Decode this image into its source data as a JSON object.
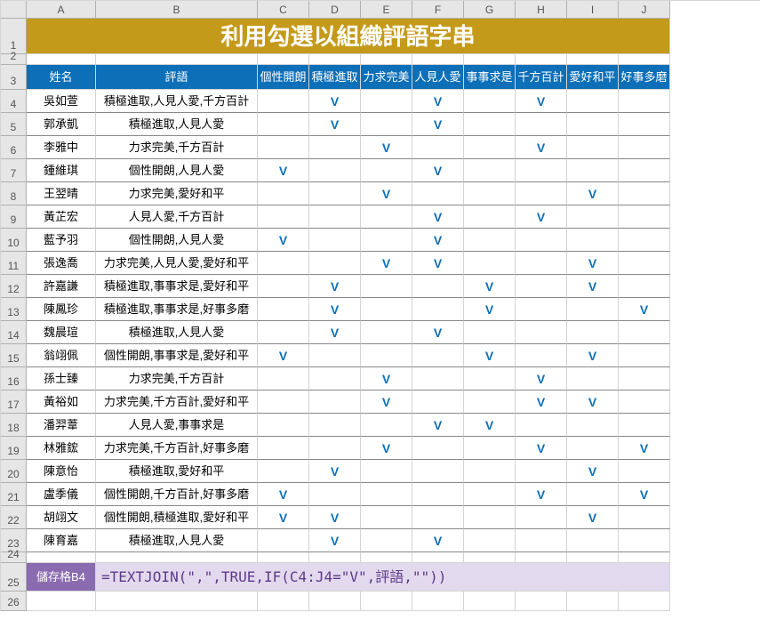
{
  "banner": "利用勾選以組織評語字串",
  "col_headers": [
    "A",
    "B",
    "C",
    "D",
    "E",
    "F",
    "G",
    "H",
    "I",
    "J"
  ],
  "row_numbers": [
    1,
    2,
    3,
    4,
    5,
    6,
    7,
    8,
    9,
    10,
    11,
    12,
    13,
    14,
    15,
    16,
    17,
    18,
    19,
    20,
    21,
    22,
    23,
    24,
    25,
    26
  ],
  "table_headers": [
    "姓名",
    "評語",
    "個性開朗",
    "積極進取",
    "力求完美",
    "人見人愛",
    "事事求是",
    "千方百計",
    "愛好和平",
    "好事多磨"
  ],
  "rows": [
    {
      "name": "吳如萱",
      "comment": "積極進取,人見人愛,千方百計",
      "ticks": [
        "",
        "V",
        "",
        "V",
        "",
        "V",
        "",
        ""
      ]
    },
    {
      "name": "郭承凱",
      "comment": "積極進取,人見人愛",
      "ticks": [
        "",
        "V",
        "",
        "V",
        "",
        "",
        "",
        ""
      ]
    },
    {
      "name": "李雅中",
      "comment": "力求完美,千方百計",
      "ticks": [
        "",
        "",
        "V",
        "",
        "",
        "V",
        "",
        ""
      ]
    },
    {
      "name": "鍾維琪",
      "comment": "個性開朗,人見人愛",
      "ticks": [
        "V",
        "",
        "",
        "V",
        "",
        "",
        "",
        ""
      ]
    },
    {
      "name": "王翌晴",
      "comment": "力求完美,愛好和平",
      "ticks": [
        "",
        "",
        "V",
        "",
        "",
        "",
        "V",
        ""
      ]
    },
    {
      "name": "黃芷宏",
      "comment": "人見人愛,千方百計",
      "ticks": [
        "",
        "",
        "",
        "V",
        "",
        "V",
        "",
        ""
      ]
    },
    {
      "name": "藍予羽",
      "comment": "個性開朗,人見人愛",
      "ticks": [
        "V",
        "",
        "",
        "V",
        "",
        "",
        "",
        ""
      ]
    },
    {
      "name": "張逸喬",
      "comment": "力求完美,人見人愛,愛好和平",
      "ticks": [
        "",
        "",
        "V",
        "V",
        "",
        "",
        "V",
        ""
      ]
    },
    {
      "name": "許嘉謙",
      "comment": "積極進取,事事求是,愛好和平",
      "ticks": [
        "",
        "V",
        "",
        "",
        "V",
        "",
        "V",
        ""
      ]
    },
    {
      "name": "陳鳳珍",
      "comment": "積極進取,事事求是,好事多磨",
      "ticks": [
        "",
        "V",
        "",
        "",
        "V",
        "",
        "",
        "V"
      ]
    },
    {
      "name": "魏晨瑄",
      "comment": "積極進取,人見人愛",
      "ticks": [
        "",
        "V",
        "",
        "V",
        "",
        "",
        "",
        ""
      ]
    },
    {
      "name": "翁翊佩",
      "comment": "個性開朗,事事求是,愛好和平",
      "ticks": [
        "V",
        "",
        "",
        "",
        "V",
        "",
        "V",
        ""
      ]
    },
    {
      "name": "孫士臻",
      "comment": "力求完美,千方百計",
      "ticks": [
        "",
        "",
        "V",
        "",
        "",
        "V",
        "",
        ""
      ]
    },
    {
      "name": "黃裕如",
      "comment": "力求完美,千方百計,愛好和平",
      "ticks": [
        "",
        "",
        "V",
        "",
        "",
        "V",
        "V",
        ""
      ]
    },
    {
      "name": "潘羿葦",
      "comment": "人見人愛,事事求是",
      "ticks": [
        "",
        "",
        "",
        "V",
        "V",
        "",
        "",
        ""
      ]
    },
    {
      "name": "林雅鋐",
      "comment": "力求完美,千方百計,好事多磨",
      "ticks": [
        "",
        "",
        "V",
        "",
        "",
        "V",
        "",
        "V"
      ]
    },
    {
      "name": "陳意怡",
      "comment": "積極進取,愛好和平",
      "ticks": [
        "",
        "V",
        "",
        "",
        "",
        "",
        "V",
        ""
      ]
    },
    {
      "name": "盧季儀",
      "comment": "個性開朗,千方百計,好事多磨",
      "ticks": [
        "V",
        "",
        "",
        "",
        "",
        "V",
        "",
        "V"
      ]
    },
    {
      "name": "胡翊文",
      "comment": "個性開朗,積極進取,愛好和平",
      "ticks": [
        "V",
        "V",
        "",
        "",
        "",
        "",
        "V",
        ""
      ]
    },
    {
      "name": "陳育嘉",
      "comment": "積極進取,人見人愛",
      "ticks": [
        "",
        "V",
        "",
        "V",
        "",
        "",
        "",
        ""
      ]
    }
  ],
  "formula_label": "儲存格B4",
  "formula_text": "=TEXTJOIN(\",\",TRUE,IF(C4:J4=\"V\",評語,\"\"))"
}
